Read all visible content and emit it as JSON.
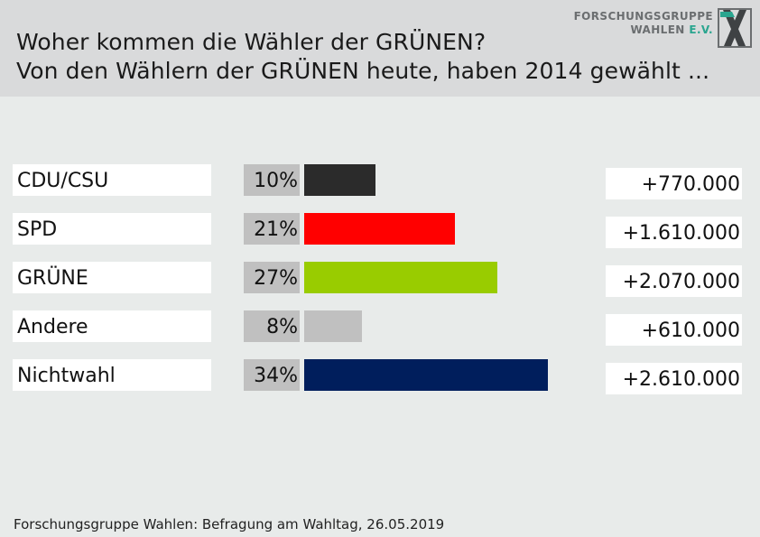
{
  "title": "Woher kommen die Wähler der GRÜNEN?",
  "subtitle": "Von den Wählern der GRÜNEN heute, haben 2014 gewählt ...",
  "logo": {
    "line1": "FORSCHUNGSGRUPPE",
    "line2": "WAHLEN",
    "line2_suffix": "E.V."
  },
  "source": "Forschungsgruppe Wahlen: Befragung am Wahltag, 26.05.2019",
  "chart_data": {
    "type": "bar",
    "orientation": "horizontal",
    "title": "Woher kommen die Wähler der GRÜNEN?",
    "subtitle": "Von den Wählern der GRÜNEN heute, haben 2014 gewählt ...",
    "categories": [
      "CDU/CSU",
      "SPD",
      "GRÜNE",
      "Andere",
      "Nichtwahl"
    ],
    "values": [
      10,
      21,
      27,
      8,
      34
    ],
    "value_labels": [
      "10%",
      "21%",
      "27%",
      "8%",
      "34%"
    ],
    "absolute_labels": [
      "+770.000",
      "+1.610.000",
      "+2.070.000",
      "+610.000",
      "+2.610.000"
    ],
    "colors": [
      "#2b2b2b",
      "#ff0000",
      "#99cc00",
      "#c0c0c0",
      "#001e5c"
    ],
    "xlim": [
      0,
      34
    ],
    "grid": false
  }
}
